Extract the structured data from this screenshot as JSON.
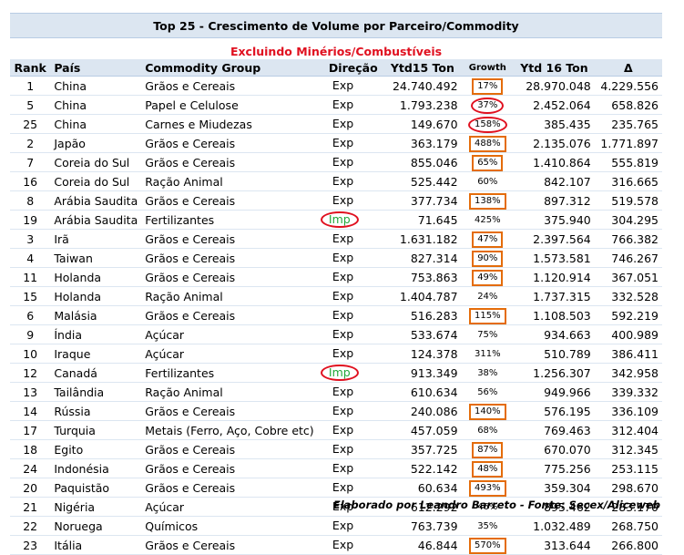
{
  "title": "Top 25 - Crescimento de Volume por Parceiro/Commodity",
  "subtitle": "Excluindo Minérios/Combustíveis",
  "columns": {
    "rank": "Rank",
    "pais": "País",
    "commodity": "Commodity Group",
    "direcao": "Direção",
    "ytd15": "Ytd15 Ton",
    "growth": "Growth",
    "ytd16": "Ytd 16 Ton",
    "delta": "Δ"
  },
  "rows": [
    {
      "rank": "1",
      "pais": "China",
      "commodity": "Grãos e Cereais",
      "direcao": "Exp",
      "ytd15": "24.740.492",
      "growth": "17%",
      "ytd16": "28.970.048",
      "delta": "4.229.556",
      "mark": "box"
    },
    {
      "rank": "5",
      "pais": "China",
      "commodity": "Papel e Celulose",
      "direcao": "Exp",
      "ytd15": "1.793.238",
      "growth": "37%",
      "ytd16": "2.452.064",
      "delta": "658.826",
      "mark": "oval"
    },
    {
      "rank": "25",
      "pais": "China",
      "commodity": "Carnes e Miudezas",
      "direcao": "Exp",
      "ytd15": "149.670",
      "growth": "158%",
      "ytd16": "385.435",
      "delta": "235.765",
      "mark": "oval"
    },
    {
      "rank": "2",
      "pais": "Japão",
      "commodity": "Grãos e Cereais",
      "direcao": "Exp",
      "ytd15": "363.179",
      "growth": "488%",
      "ytd16": "2.135.076",
      "delta": "1.771.897",
      "mark": "box"
    },
    {
      "rank": "7",
      "pais": "Coreia do Sul",
      "commodity": "Grãos e Cereais",
      "direcao": "Exp",
      "ytd15": "855.046",
      "growth": "65%",
      "ytd16": "1.410.864",
      "delta": "555.819",
      "mark": "box"
    },
    {
      "rank": "16",
      "pais": "Coreia do Sul",
      "commodity": "Ração Animal",
      "direcao": "Exp",
      "ytd15": "525.442",
      "growth": "60%",
      "ytd16": "842.107",
      "delta": "316.665",
      "mark": "none"
    },
    {
      "rank": "8",
      "pais": "Arábia Saudita",
      "commodity": "Grãos e Cereais",
      "direcao": "Exp",
      "ytd15": "377.734",
      "growth": "138%",
      "ytd16": "897.312",
      "delta": "519.578",
      "mark": "box"
    },
    {
      "rank": "19",
      "pais": "Arábia Saudita",
      "commodity": "Fertilizantes",
      "direcao": "Imp",
      "ytd15": "71.645",
      "growth": "425%",
      "ytd16": "375.940",
      "delta": "304.295",
      "mark": "none"
    },
    {
      "rank": "3",
      "pais": "Irã",
      "commodity": "Grãos e Cereais",
      "direcao": "Exp",
      "ytd15": "1.631.182",
      "growth": "47%",
      "ytd16": "2.397.564",
      "delta": "766.382",
      "mark": "box"
    },
    {
      "rank": "4",
      "pais": "Taiwan",
      "commodity": "Grãos e Cereais",
      "direcao": "Exp",
      "ytd15": "827.314",
      "growth": "90%",
      "ytd16": "1.573.581",
      "delta": "746.267",
      "mark": "box"
    },
    {
      "rank": "11",
      "pais": "Holanda",
      "commodity": "Grãos e Cereais",
      "direcao": "Exp",
      "ytd15": "753.863",
      "growth": "49%",
      "ytd16": "1.120.914",
      "delta": "367.051",
      "mark": "box"
    },
    {
      "rank": "15",
      "pais": "Holanda",
      "commodity": "Ração Animal",
      "direcao": "Exp",
      "ytd15": "1.404.787",
      "growth": "24%",
      "ytd16": "1.737.315",
      "delta": "332.528",
      "mark": "none"
    },
    {
      "rank": "6",
      "pais": "Malásia",
      "commodity": "Grãos e Cereais",
      "direcao": "Exp",
      "ytd15": "516.283",
      "growth": "115%",
      "ytd16": "1.108.503",
      "delta": "592.219",
      "mark": "box"
    },
    {
      "rank": "9",
      "pais": "Índia",
      "commodity": "Açúcar",
      "direcao": "Exp",
      "ytd15": "533.674",
      "growth": "75%",
      "ytd16": "934.663",
      "delta": "400.989",
      "mark": "none"
    },
    {
      "rank": "10",
      "pais": "Iraque",
      "commodity": "Açúcar",
      "direcao": "Exp",
      "ytd15": "124.378",
      "growth": "311%",
      "ytd16": "510.789",
      "delta": "386.411",
      "mark": "none"
    },
    {
      "rank": "12",
      "pais": "Canadá",
      "commodity": "Fertilizantes",
      "direcao": "Imp",
      "ytd15": "913.349",
      "growth": "38%",
      "ytd16": "1.256.307",
      "delta": "342.958",
      "mark": "none"
    },
    {
      "rank": "13",
      "pais": "Tailândia",
      "commodity": "Ração Animal",
      "direcao": "Exp",
      "ytd15": "610.634",
      "growth": "56%",
      "ytd16": "949.966",
      "delta": "339.332",
      "mark": "none"
    },
    {
      "rank": "14",
      "pais": "Rússia",
      "commodity": "Grãos e Cereais",
      "direcao": "Exp",
      "ytd15": "240.086",
      "growth": "140%",
      "ytd16": "576.195",
      "delta": "336.109",
      "mark": "box"
    },
    {
      "rank": "17",
      "pais": "Turquia",
      "commodity": "Metais (Ferro, Aço, Cobre etc)",
      "direcao": "Exp",
      "ytd15": "457.059",
      "growth": "68%",
      "ytd16": "769.463",
      "delta": "312.404",
      "mark": "none"
    },
    {
      "rank": "18",
      "pais": "Egito",
      "commodity": "Grãos e Cereais",
      "direcao": "Exp",
      "ytd15": "357.725",
      "growth": "87%",
      "ytd16": "670.070",
      "delta": "312.345",
      "mark": "box"
    },
    {
      "rank": "24",
      "pais": "Indonésia",
      "commodity": "Grãos e Cereais",
      "direcao": "Exp",
      "ytd15": "522.142",
      "growth": "48%",
      "ytd16": "775.256",
      "delta": "253.115",
      "mark": "box"
    },
    {
      "rank": "20",
      "pais": "Paquistão",
      "commodity": "Grãos e Cereais",
      "direcao": "Exp",
      "ytd15": "60.634",
      "growth": "493%",
      "ytd16": "359.304",
      "delta": "298.670",
      "mark": "box"
    },
    {
      "rank": "21",
      "pais": "Nigéria",
      "commodity": "Açúcar",
      "direcao": "Exp",
      "ytd15": "612.292",
      "growth": "46%",
      "ytd16": "895.462",
      "delta": "283.170",
      "mark": "none"
    },
    {
      "rank": "22",
      "pais": "Noruega",
      "commodity": "Químicos",
      "direcao": "Exp",
      "ytd15": "763.739",
      "growth": "35%",
      "ytd16": "1.032.489",
      "delta": "268.750",
      "mark": "none"
    },
    {
      "rank": "23",
      "pais": "Itália",
      "commodity": "Grãos e Cereais",
      "direcao": "Exp",
      "ytd15": "46.844",
      "growth": "570%",
      "ytd16": "313.644",
      "delta": "266.800",
      "mark": "box"
    }
  ],
  "footer": "Elaborado por Leandro Barreto - Fonte: Secex/Aliceweb",
  "colors": {
    "header_bg": "#dce6f1",
    "subtitle": "#e0101f",
    "box_outline": "#e46c0a",
    "oval_outline": "#e0101f",
    "imp_text": "#22a83a"
  }
}
